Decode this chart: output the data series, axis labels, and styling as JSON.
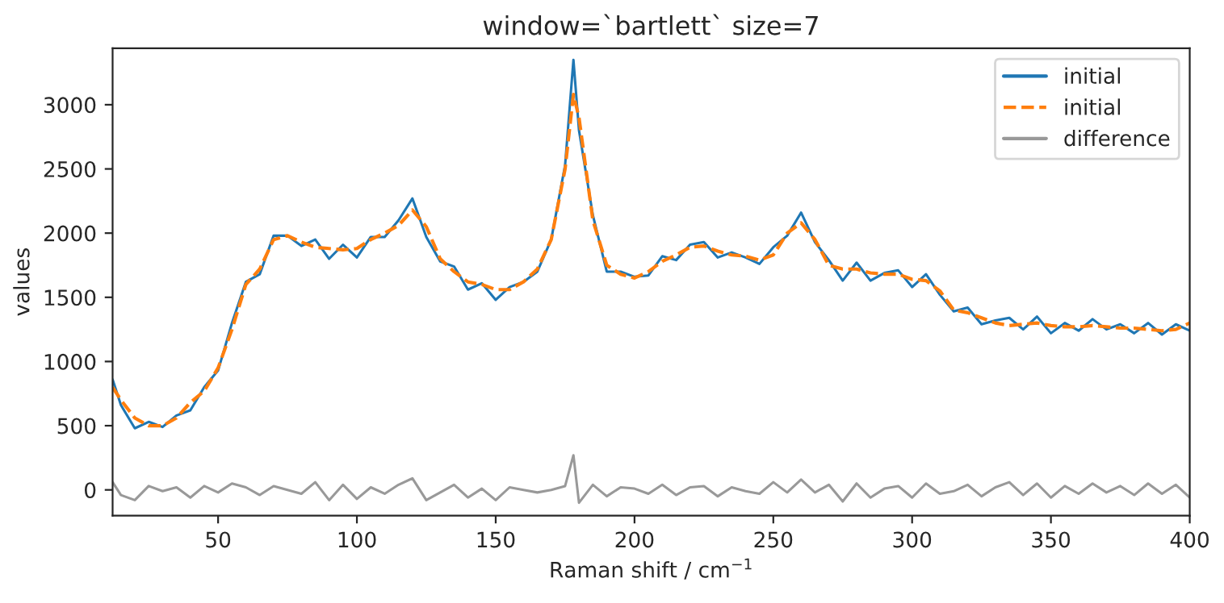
{
  "chart_data": {
    "type": "line",
    "title": "window=`bartlett` size=7",
    "xlabel": "Raman shift / cm$^{−1}$",
    "ylabel": "values",
    "x": [
      12,
      15,
      20,
      25,
      30,
      35,
      40,
      45,
      50,
      55,
      60,
      65,
      70,
      75,
      80,
      85,
      90,
      95,
      100,
      105,
      110,
      115,
      120,
      125,
      130,
      135,
      140,
      145,
      150,
      155,
      160,
      165,
      170,
      175,
      178,
      180,
      185,
      190,
      195,
      200,
      205,
      210,
      215,
      220,
      225,
      230,
      235,
      240,
      245,
      250,
      255,
      260,
      265,
      270,
      275,
      280,
      285,
      290,
      295,
      300,
      305,
      310,
      315,
      320,
      325,
      330,
      335,
      340,
      345,
      350,
      355,
      360,
      365,
      370,
      375,
      380,
      385,
      390,
      395,
      400
    ],
    "series": [
      {
        "name": "initial",
        "color": "#1f77b4",
        "line_style": "solid",
        "values": [
          860,
          660,
          480,
          530,
          490,
          580,
          620,
          800,
          930,
          1300,
          1620,
          1680,
          1980,
          1980,
          1900,
          1950,
          1800,
          1910,
          1810,
          1970,
          1970,
          2100,
          2270,
          1970,
          1780,
          1740,
          1560,
          1610,
          1480,
          1580,
          1620,
          1700,
          1950,
          2530,
          3350,
          2800,
          2140,
          1700,
          1700,
          1660,
          1670,
          1820,
          1790,
          1910,
          1930,
          1810,
          1850,
          1810,
          1760,
          1890,
          1980,
          2160,
          1930,
          1790,
          1630,
          1770,
          1630,
          1690,
          1710,
          1580,
          1680,
          1520,
          1390,
          1420,
          1290,
          1320,
          1340,
          1250,
          1350,
          1220,
          1300,
          1240,
          1330,
          1250,
          1290,
          1220,
          1300,
          1210,
          1290,
          1240
        ]
      },
      {
        "name": "initial",
        "color": "#ff7f0e",
        "line_style": "dashed",
        "values": [
          800,
          700,
          560,
          500,
          500,
          560,
          680,
          770,
          950,
          1250,
          1600,
          1720,
          1950,
          1980,
          1930,
          1890,
          1880,
          1870,
          1880,
          1950,
          2000,
          2060,
          2180,
          2050,
          1800,
          1700,
          1620,
          1600,
          1560,
          1560,
          1620,
          1720,
          1950,
          2500,
          3080,
          2900,
          2100,
          1750,
          1680,
          1650,
          1700,
          1780,
          1830,
          1890,
          1900,
          1860,
          1830,
          1820,
          1790,
          1830,
          2000,
          2080,
          1950,
          1750,
          1720,
          1720,
          1690,
          1680,
          1680,
          1640,
          1630,
          1550,
          1400,
          1380,
          1340,
          1300,
          1280,
          1290,
          1300,
          1280,
          1270,
          1270,
          1280,
          1270,
          1260,
          1260,
          1250,
          1240,
          1250,
          1300
        ]
      },
      {
        "name": "difference",
        "color": "#999999",
        "line_style": "solid",
        "values": [
          60,
          -40,
          -80,
          30,
          -10,
          20,
          -60,
          30,
          -20,
          50,
          20,
          -40,
          30,
          0,
          -30,
          60,
          -80,
          40,
          -70,
          20,
          -30,
          40,
          90,
          -80,
          -20,
          40,
          -60,
          10,
          -80,
          20,
          0,
          -20,
          0,
          30,
          270,
          -100,
          40,
          -50,
          20,
          10,
          -30,
          40,
          -40,
          20,
          30,
          -50,
          20,
          -10,
          -30,
          60,
          -20,
          80,
          -20,
          40,
          -90,
          50,
          -60,
          10,
          30,
          -60,
          50,
          -30,
          -10,
          40,
          -50,
          20,
          60,
          -40,
          50,
          -60,
          30,
          -30,
          50,
          -20,
          30,
          -40,
          50,
          -30,
          40,
          -60
        ]
      }
    ],
    "xlim": [
      12,
      400
    ],
    "ylim": [
      -200,
      3440
    ],
    "xticks": [
      50,
      100,
      150,
      200,
      250,
      300,
      350,
      400
    ],
    "yticks": [
      0,
      500,
      1000,
      1500,
      2000,
      2500,
      3000
    ],
    "grid": false,
    "legend": "top right",
    "marker": "none"
  }
}
